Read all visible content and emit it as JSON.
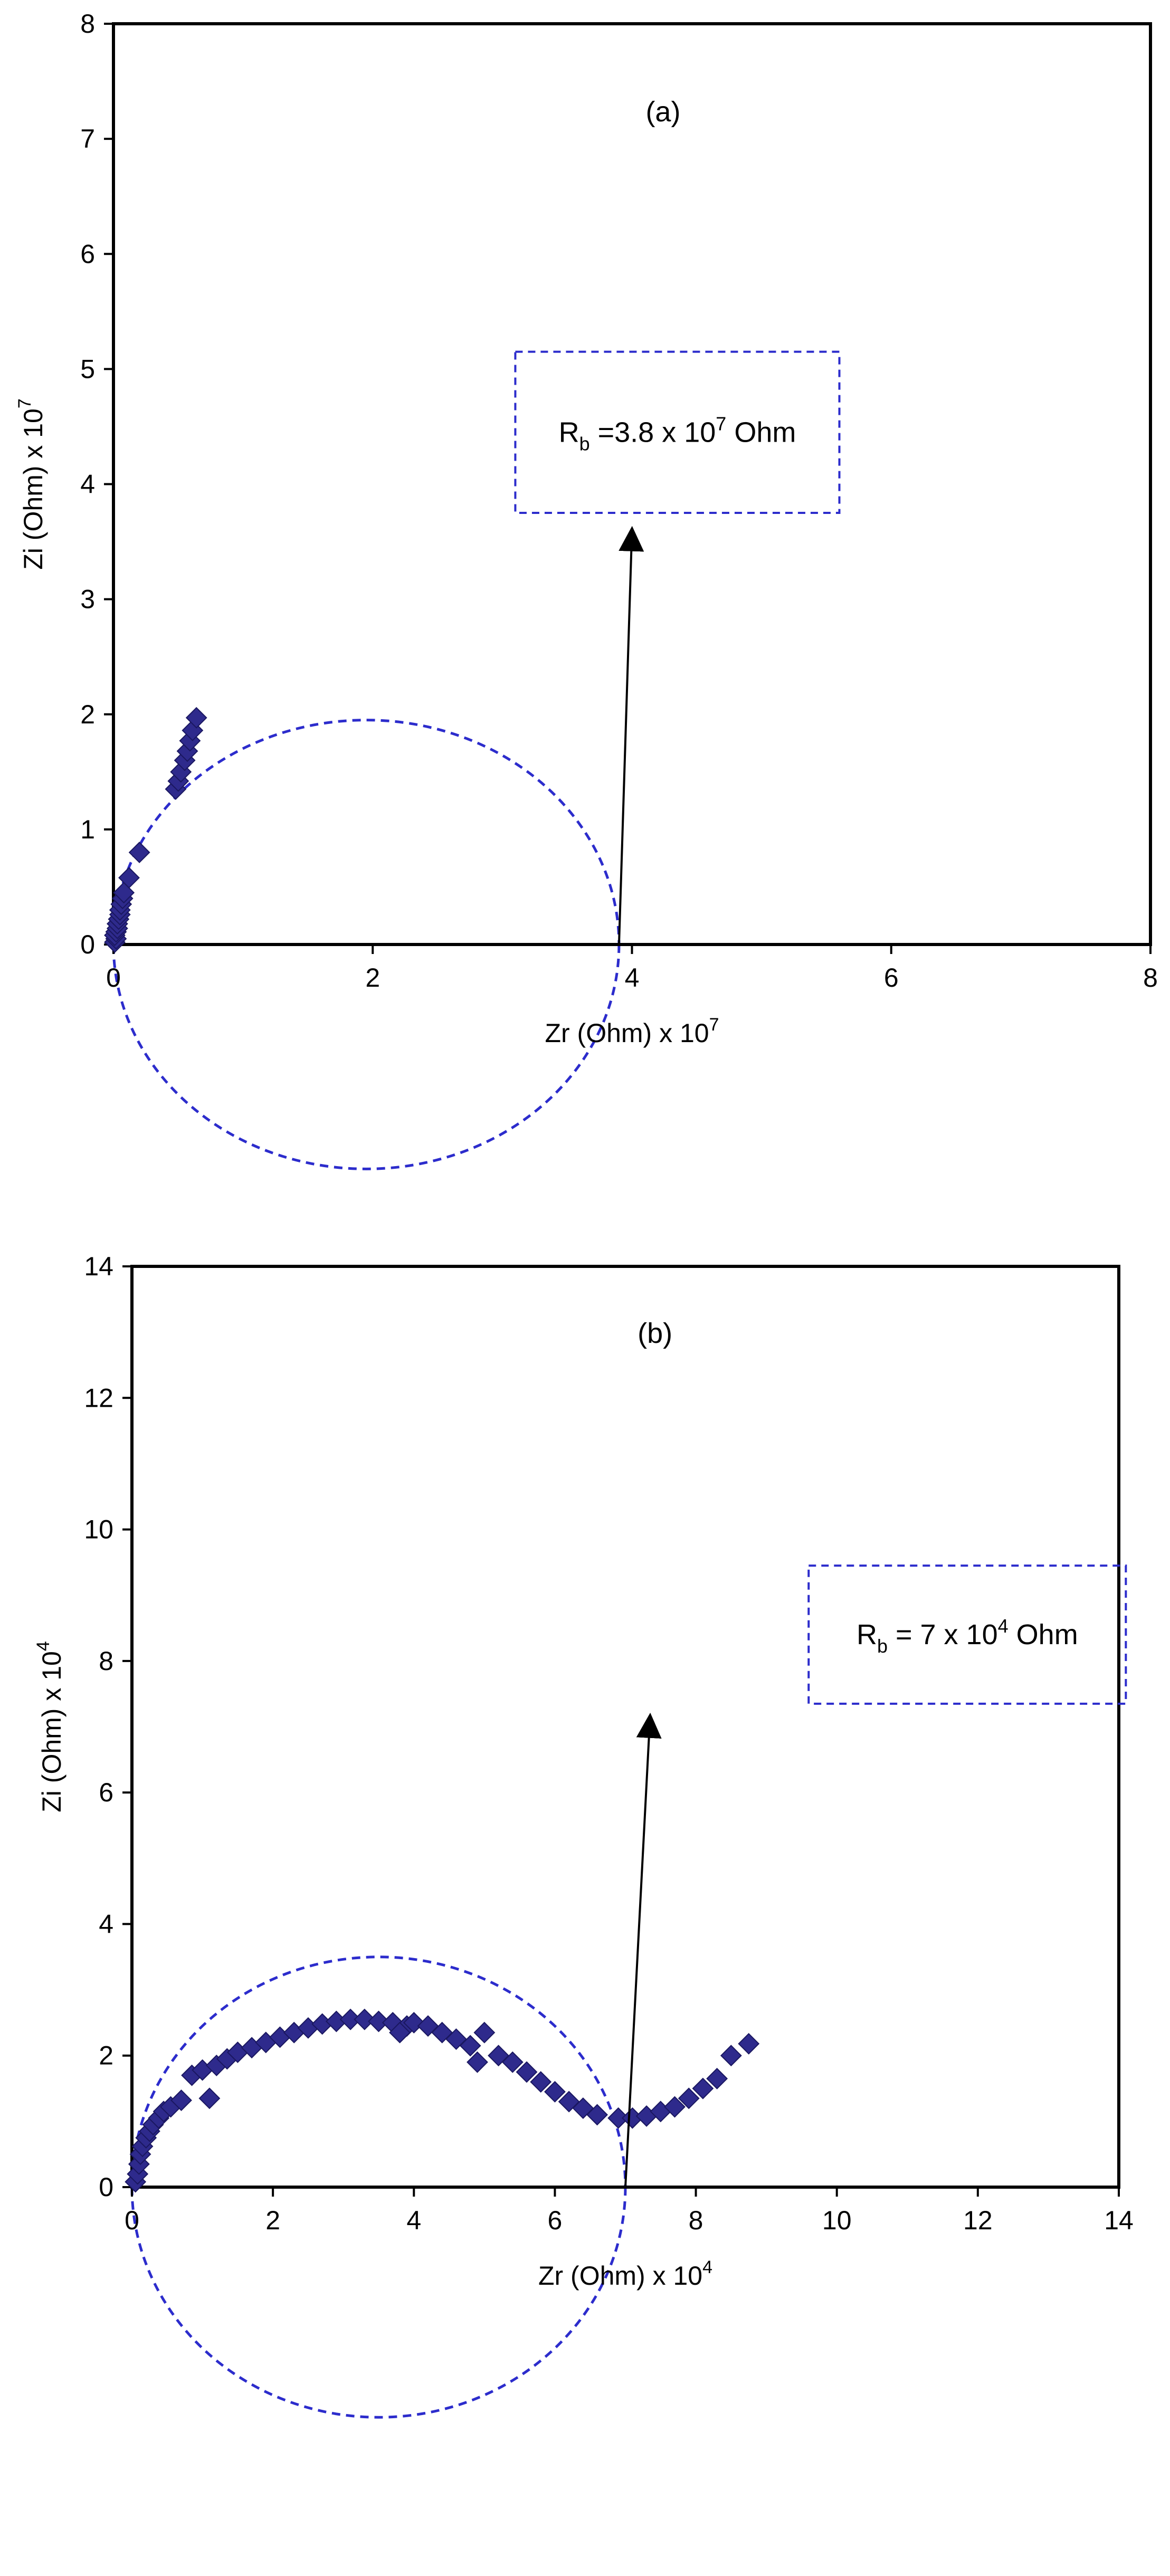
{
  "chart_data": [
    {
      "type": "scatter",
      "panel_label": "(a)",
      "xlabel": "Zr (Ohm) x 10",
      "xlabel_exp": "7",
      "ylabel": "Zi (Ohm) x 10",
      "ylabel_exp": "7",
      "xlim": [
        0,
        8
      ],
      "ylim": [
        0,
        8
      ],
      "xticks": [
        0,
        2,
        4,
        6,
        8
      ],
      "yticks": [
        0,
        1,
        2,
        3,
        4,
        5,
        6,
        7,
        8
      ],
      "grid": false,
      "marker_color": "#2e2a8c",
      "fit_color": "#2c2ccc",
      "annotation": {
        "prefix": "R",
        "sub": "b",
        "value": " =3.8 x 10",
        "exp": "7",
        "unit": " Ohm"
      },
      "annotation_box": {
        "x": [
          3.1,
          5.6
        ],
        "y": [
          3.75,
          5.15
        ]
      },
      "arrow": {
        "from": [
          3.9,
          0.0
        ],
        "to": [
          4.0,
          3.6
        ]
      },
      "fit_circle": {
        "center": [
          1.95,
          0.0
        ],
        "radius": 1.95
      },
      "points": [
        [
          0.01,
          0.02
        ],
        [
          0.02,
          0.05
        ],
        [
          0.01,
          0.08
        ],
        [
          0.02,
          0.11
        ],
        [
          0.03,
          0.14
        ],
        [
          0.03,
          0.18
        ],
        [
          0.04,
          0.22
        ],
        [
          0.05,
          0.26
        ],
        [
          0.05,
          0.3
        ],
        [
          0.06,
          0.35
        ],
        [
          0.07,
          0.4
        ],
        [
          0.08,
          0.45
        ],
        [
          0.12,
          0.58
        ],
        [
          0.2,
          0.8
        ],
        [
          0.48,
          1.35
        ],
        [
          0.5,
          1.42
        ],
        [
          0.52,
          1.5
        ],
        [
          0.55,
          1.6
        ],
        [
          0.57,
          1.68
        ],
        [
          0.59,
          1.77
        ],
        [
          0.61,
          1.86
        ],
        [
          0.64,
          1.97
        ]
      ]
    },
    {
      "type": "scatter",
      "panel_label": "(b)",
      "xlabel": "Zr (Ohm) x 10",
      "xlabel_exp": "4",
      "ylabel": "Zi (Ohm) x 10",
      "ylabel_exp": "4",
      "xlim": [
        0,
        14
      ],
      "ylim": [
        0,
        14
      ],
      "xticks": [
        0,
        2,
        4,
        6,
        8,
        10,
        12,
        14
      ],
      "yticks": [
        0,
        2,
        4,
        6,
        8,
        10,
        12,
        14
      ],
      "grid": false,
      "marker_color": "#2e2a8c",
      "fit_color": "#2c2ccc",
      "annotation": {
        "prefix": "R",
        "sub": "b",
        "value": " = 7 x 10",
        "exp": "4",
        "unit": " Ohm"
      },
      "annotation_box": {
        "x": [
          9.6,
          14.1
        ],
        "y": [
          7.35,
          9.45
        ]
      },
      "arrow": {
        "from": [
          7.0,
          0.0
        ],
        "to": [
          7.35,
          7.15
        ]
      },
      "fit_circle": {
        "center": [
          3.5,
          0.0
        ],
        "radius": 3.5
      },
      "points": [
        [
          0.05,
          0.08
        ],
        [
          0.08,
          0.2
        ],
        [
          0.1,
          0.35
        ],
        [
          0.12,
          0.5
        ],
        [
          0.15,
          0.62
        ],
        [
          0.2,
          0.75
        ],
        [
          0.25,
          0.85
        ],
        [
          0.3,
          0.95
        ],
        [
          0.38,
          1.05
        ],
        [
          0.45,
          1.15
        ],
        [
          0.55,
          1.22
        ],
        [
          0.7,
          1.32
        ],
        [
          0.85,
          1.7
        ],
        [
          1.0,
          1.78
        ],
        [
          1.1,
          1.35
        ],
        [
          1.2,
          1.85
        ],
        [
          1.35,
          1.95
        ],
        [
          1.5,
          2.05
        ],
        [
          1.7,
          2.12
        ],
        [
          1.9,
          2.2
        ],
        [
          2.1,
          2.28
        ],
        [
          2.3,
          2.35
        ],
        [
          2.5,
          2.42
        ],
        [
          2.7,
          2.48
        ],
        [
          2.9,
          2.52
        ],
        [
          3.1,
          2.55
        ],
        [
          3.3,
          2.55
        ],
        [
          3.5,
          2.52
        ],
        [
          3.7,
          2.5
        ],
        [
          3.9,
          2.45
        ],
        [
          3.8,
          2.35
        ],
        [
          4.0,
          2.5
        ],
        [
          4.2,
          2.45
        ],
        [
          4.4,
          2.35
        ],
        [
          4.6,
          2.25
        ],
        [
          4.8,
          2.15
        ],
        [
          4.9,
          1.9
        ],
        [
          5.0,
          2.35
        ],
        [
          5.2,
          2.0
        ],
        [
          5.4,
          1.9
        ],
        [
          5.6,
          1.75
        ],
        [
          5.8,
          1.6
        ],
        [
          6.0,
          1.45
        ],
        [
          6.2,
          1.3
        ],
        [
          6.4,
          1.2
        ],
        [
          6.6,
          1.1
        ],
        [
          6.9,
          1.05
        ],
        [
          7.1,
          1.05
        ],
        [
          7.3,
          1.08
        ],
        [
          7.5,
          1.15
        ],
        [
          7.7,
          1.22
        ],
        [
          7.9,
          1.35
        ],
        [
          8.1,
          1.5
        ],
        [
          8.3,
          1.65
        ],
        [
          8.5,
          2.0
        ],
        [
          8.75,
          2.18
        ]
      ]
    }
  ]
}
